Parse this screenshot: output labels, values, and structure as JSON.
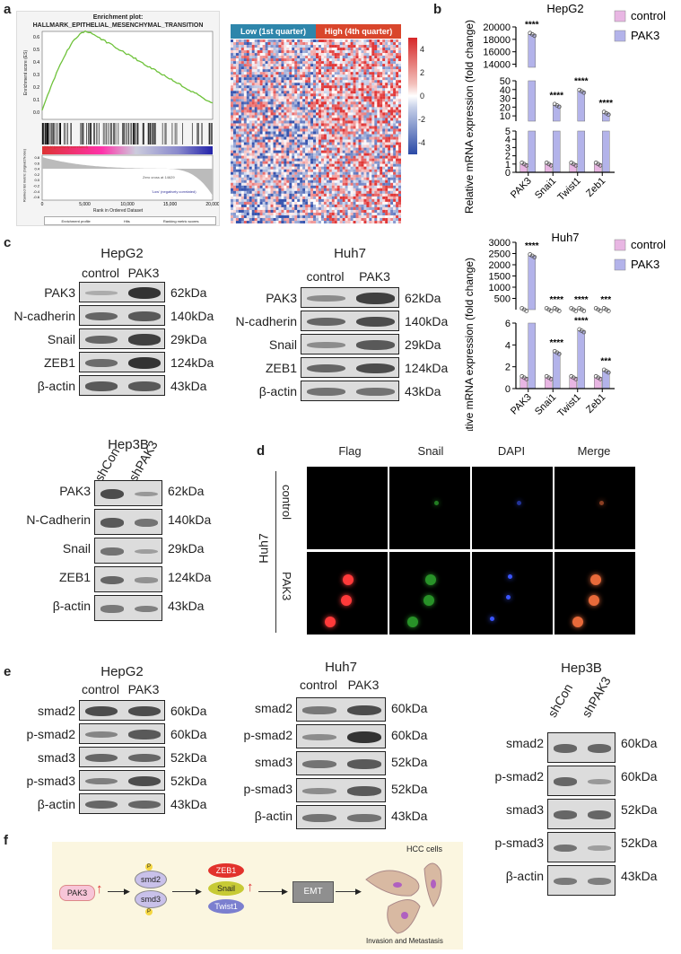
{
  "panels": {
    "a": "a",
    "b": "b",
    "c": "c",
    "d": "d",
    "e": "e",
    "f": "f"
  },
  "gsea": {
    "title_line1": "Enrichment plot:",
    "title_line2": "HALLMARK_EPITHELIAL_MESENCHYMAL_TRANSITION",
    "ylabel_top": "Enrichment score (ES)",
    "ylabel_bottom": "Ranked list metric (Signal2Noise)",
    "xlabel": "Rank in Ordered Dataset",
    "yticks": [
      "0.6",
      "0.5",
      "0.4",
      "0.3",
      "0.2",
      "0.1",
      "0.0"
    ],
    "yticks2": [
      "0.8",
      "0.6",
      "0.4",
      "0.2",
      "0.0",
      "-0.2",
      "-0.4",
      "-0.6"
    ],
    "xticks": [
      "0",
      "5,000",
      "10,000",
      "15,000",
      "20,000"
    ],
    "high_label": "'High' (positively correlated)",
    "low_label": "'Low' (negatively correlated)",
    "zero_label": "Zero cross at 14629",
    "legend": [
      "Enrichment profile",
      "Hits",
      "Ranking metric scores"
    ],
    "colors": {
      "curve": "#6ec23a"
    }
  },
  "heatmap": {
    "low_label": "Low (1st quarter)",
    "high_label": "High (4th quarter)",
    "colorbar_ticks": [
      "4",
      "2",
      "0",
      "-2",
      "-4"
    ],
    "colors": {
      "low": "#2e86ab",
      "high": "#d9462c"
    }
  },
  "chart_data": [
    {
      "type": "bar",
      "title": "HepG2",
      "ylabel": "Relative mRNA expression (fold change)",
      "categories": [
        "PAK3",
        "Snai1",
        "Twist1",
        "Zeb1"
      ],
      "series": [
        {
          "name": "control",
          "values": [
            1,
            1,
            1,
            1
          ]
        },
        {
          "name": "PAK3",
          "values": [
            18800,
            22,
            38,
            13
          ]
        }
      ],
      "significance": [
        "****",
        "****",
        "****",
        "****"
      ],
      "yticks_top": [
        "20000",
        "18000",
        "16000",
        "14000"
      ],
      "yticks_mid": [
        "50",
        "40",
        "30",
        "20",
        "10"
      ],
      "yticks_bot": [
        "5",
        "4",
        "3",
        "2",
        "1",
        "0"
      ],
      "legend_position": "top-right",
      "colors": {
        "control": "#e8b6e3",
        "PAK3": "#b3b3ea"
      }
    },
    {
      "type": "bar",
      "title": "Huh7",
      "ylabel": "Relative mRNA expression (fold change)",
      "categories": [
        "PAK3",
        "Snai1",
        "Twist1",
        "Zeb1"
      ],
      "series": [
        {
          "name": "control",
          "values": [
            1,
            1,
            1,
            1
          ]
        },
        {
          "name": "PAK3",
          "values": [
            2400,
            3.3,
            5.3,
            1.6
          ]
        }
      ],
      "significance": [
        "****",
        "****",
        "****",
        "***"
      ],
      "yticks_top": [
        "3000",
        "2500",
        "2000",
        "1500",
        "1000",
        "500"
      ],
      "yticks_bot": [
        "6",
        "4",
        "2",
        "0"
      ],
      "legend_position": "top-right",
      "colors": {
        "control": "#e8b6e3",
        "PAK3": "#b3b3ea"
      }
    }
  ],
  "blots": {
    "c_hepg2": {
      "title": "HepG2",
      "lanes": [
        "control",
        "PAK3"
      ],
      "rows": [
        "PAK3",
        "N-cadherin",
        "Snail",
        "ZEB1",
        "β-actin"
      ],
      "kda": [
        "62kDa",
        "140kDa",
        "29kDa",
        "124kDa",
        "43kDa"
      ]
    },
    "c_huh7": {
      "title": "Huh7",
      "lanes": [
        "control",
        "PAK3"
      ],
      "rows": [
        "PAK3",
        "N-cadherin",
        "Snail",
        "ZEB1",
        "β-actin"
      ],
      "kda": [
        "62kDa",
        "140kDa",
        "29kDa",
        "124kDa",
        "43kDa"
      ]
    },
    "c_hep3b": {
      "title": "Hep3B",
      "lanes": [
        "shCon",
        "shPAK3"
      ],
      "rows": [
        "PAK3",
        "N-Cadherin",
        "Snail",
        "ZEB1",
        "β-actin"
      ],
      "kda": [
        "62kDa",
        "140kDa",
        "29kDa",
        "124kDa",
        "43kDa"
      ]
    },
    "e_hepg2": {
      "title": "HepG2",
      "lanes": [
        "control",
        "PAK3"
      ],
      "rows": [
        "smad2",
        "p-smad2",
        "smad3",
        "p-smad3",
        "β-actin"
      ],
      "kda": [
        "60kDa",
        "60kDa",
        "52kDa",
        "52kDa",
        "43kDa"
      ]
    },
    "e_huh7": {
      "title": "Huh7",
      "lanes": [
        "control",
        "PAK3"
      ],
      "rows": [
        "smad2",
        "p-smad2",
        "smad3",
        "p-smad3",
        "β-actin"
      ],
      "kda": [
        "60kDa",
        "60kDa",
        "52kDa",
        "52kDa",
        "43kDa"
      ]
    },
    "e_hep3b": {
      "title": "Hep3B",
      "lanes": [
        "shCon",
        "shPAK3"
      ],
      "rows": [
        "smad2",
        "p-smad2",
        "smad3",
        "p-smad3",
        "β-actin"
      ],
      "kda": [
        "60kDa",
        "60kDa",
        "52kDa",
        "52kDa",
        "43kDa"
      ]
    }
  },
  "if": {
    "cols": [
      "Flag",
      "Snail",
      "DAPI",
      "Merge"
    ],
    "cell_line": "Huh7",
    "rows": [
      "control",
      "PAK3"
    ]
  },
  "pathway": {
    "pak3": "PAK3",
    "smad2": "smd2",
    "smad3": "smd3",
    "p": "P",
    "zeb1": "ZEB1",
    "snail": "Snail",
    "twist1": "Twist1",
    "emt": "EMT",
    "hcc": "HCC cells",
    "invasion": "Invasion and Metastasis"
  }
}
